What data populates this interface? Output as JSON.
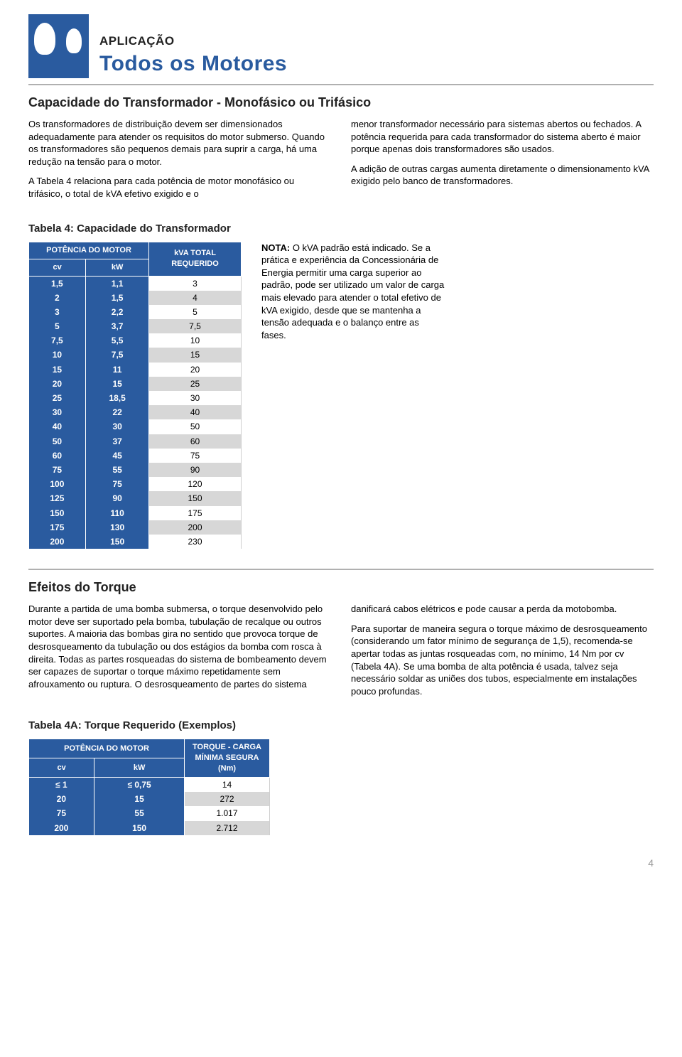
{
  "header": {
    "app_label": "APLICAÇÃO",
    "app_title": "Todos os Motores"
  },
  "section1": {
    "title": "Capacidade do Transformador - Monofásico ou Trifásico",
    "left_p1": "Os transformadores de distribuição devem ser dimensionados adequadamente para atender os requisitos do motor submerso. Quando os transformadores são pequenos demais para suprir a carga, há uma redução na tensão para o motor.",
    "left_p2": "A Tabela 4 relaciona para cada potência de motor monofásico ou trifásico, o total de kVA efetivo exigido e o",
    "right_p1": "menor transformador necessário para sistemas abertos ou fechados. A potência requerida para cada transformador do sistema aberto é maior porque apenas dois transformadores são usados.",
    "right_p2": "A adição de outras cargas aumenta diretamente o dimensionamento kVA exigido pelo banco de transformadores."
  },
  "table4": {
    "title": "Tabela 4: Capacidade do Transformador",
    "header_group": "POTÊNCIA DO MOTOR",
    "header_kva": "kVA TOTAL REQUERIDO",
    "col_cv": "cv",
    "col_kw": "kW",
    "rows": [
      {
        "cv": "1,5",
        "kw": "1,1",
        "kva": "3"
      },
      {
        "cv": "2",
        "kw": "1,5",
        "kva": "4"
      },
      {
        "cv": "3",
        "kw": "2,2",
        "kva": "5"
      },
      {
        "cv": "5",
        "kw": "3,7",
        "kva": "7,5"
      },
      {
        "cv": "7,5",
        "kw": "5,5",
        "kva": "10"
      },
      {
        "cv": "10",
        "kw": "7,5",
        "kva": "15"
      },
      {
        "cv": "15",
        "kw": "11",
        "kva": "20"
      },
      {
        "cv": "20",
        "kw": "15",
        "kva": "25"
      },
      {
        "cv": "25",
        "kw": "18,5",
        "kva": "30"
      },
      {
        "cv": "30",
        "kw": "22",
        "kva": "40"
      },
      {
        "cv": "40",
        "kw": "30",
        "kva": "50"
      },
      {
        "cv": "50",
        "kw": "37",
        "kva": "60"
      },
      {
        "cv": "60",
        "kw": "45",
        "kva": "75"
      },
      {
        "cv": "75",
        "kw": "55",
        "kva": "90"
      },
      {
        "cv": "100",
        "kw": "75",
        "kva": "120"
      },
      {
        "cv": "125",
        "kw": "90",
        "kva": "150"
      },
      {
        "cv": "150",
        "kw": "110",
        "kva": "175"
      },
      {
        "cv": "175",
        "kw": "130",
        "kva": "200"
      },
      {
        "cv": "200",
        "kw": "150",
        "kva": "230"
      }
    ],
    "note_label": "NOTA:",
    "note_text": " O kVA padrão está indicado. Se a prática e experiência da Concessionária de Energia permitir uma carga superior ao padrão, pode ser utilizado um valor de carga mais elevado para atender o total efetivo de kVA exigido, desde que se mantenha a tensão adequada e o balanço entre as fases."
  },
  "section2": {
    "title": "Efeitos do Torque",
    "left_p1": "Durante a partida de uma bomba submersa, o torque desenvolvido pelo motor deve ser suportado pela bomba, tubulação de recalque ou outros suportes. A maioria das bombas gira no sentido que provoca torque de desrosqueamento da tubulação ou dos estágios da bomba com rosca à direita. Todas as partes rosqueadas do sistema de bombeamento devem ser capazes de suportar o torque máximo repetidamente sem afrouxamento ou ruptura. O desrosqueamento de partes do sistema",
    "right_p1": "danificará cabos elétricos e pode causar a perda da motobomba.",
    "right_p2": "Para suportar de maneira segura o torque máximo de desrosqueamento (considerando um fator mínimo de segurança de 1,5), recomenda-se apertar todas as juntas rosqueadas com, no mínimo, 14 Nm por cv (Tabela 4A). Se uma bomba de alta potência é usada, talvez seja necessário soldar as uniões dos tubos, especialmente em instalações pouco profundas."
  },
  "table4a": {
    "title": "Tabela 4A: Torque Requerido (Exemplos)",
    "header_group": "POTÊNCIA DO MOTOR",
    "header_torque": "TORQUE - CARGA MÍNIMA SEGURA (Nm)",
    "col_cv": "cv",
    "col_kw": "kW",
    "rows": [
      {
        "cv": "≤ 1",
        "kw": "≤ 0,75",
        "torque": "14"
      },
      {
        "cv": "20",
        "kw": "15",
        "torque": "272"
      },
      {
        "cv": "75",
        "kw": "55",
        "torque": "1.017"
      },
      {
        "cv": "200",
        "kw": "150",
        "torque": "2.712"
      }
    ]
  },
  "page_number": "4",
  "colors": {
    "brand_blue": "#2a5b9f",
    "row_alt": "#d7d7d7",
    "divider": "#b0b0b0"
  }
}
